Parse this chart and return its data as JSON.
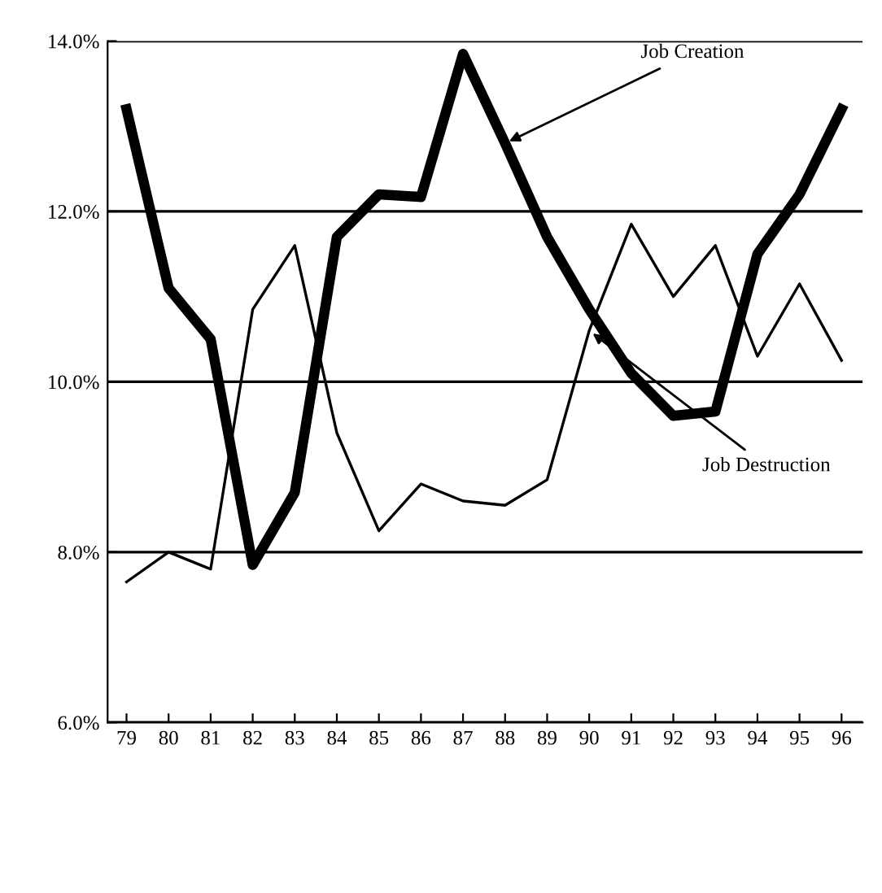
{
  "chart_data": {
    "type": "line",
    "categories": [
      "79",
      "80",
      "81",
      "82",
      "83",
      "84",
      "85",
      "86",
      "87",
      "88",
      "89",
      "90",
      "91",
      "92",
      "93",
      "94",
      "95",
      "96"
    ],
    "series": [
      {
        "color": "#000000",
        "values": [
          13.2,
          11.1,
          10.5,
          7.85,
          8.7,
          11.7,
          12.2,
          12.17,
          13.85,
          12.8,
          11.7,
          10.85,
          10.1,
          9.6,
          9.65,
          11.5,
          12.2,
          13.2
        ]
      },
      {
        "color": "#000000",
        "values": [
          7.65,
          8.0,
          7.8,
          10.85,
          11.6,
          9.4,
          8.25,
          8.8,
          8.6,
          8.55,
          8.85,
          10.6,
          11.85,
          11.0,
          11.6,
          10.3,
          11.15,
          10.25
        ]
      }
    ],
    "ylim": [
      6,
      14
    ],
    "yticks": [
      {
        "value": 6,
        "label": "6.0%"
      },
      {
        "value": 8,
        "label": "8.0%"
      },
      {
        "value": 10,
        "label": "10.0%"
      },
      {
        "value": 12,
        "label": "12.0%"
      },
      {
        "value": 14,
        "label": "14.0%"
      }
    ],
    "grid": "y",
    "legend": false,
    "marker": "none",
    "line_style": "solid",
    "annotations": [
      {
        "text": "Job Creation",
        "x": "88",
        "y": 12.8
      },
      {
        "text": "Job Destruction",
        "x": "90",
        "y": 10.6
      }
    ]
  }
}
